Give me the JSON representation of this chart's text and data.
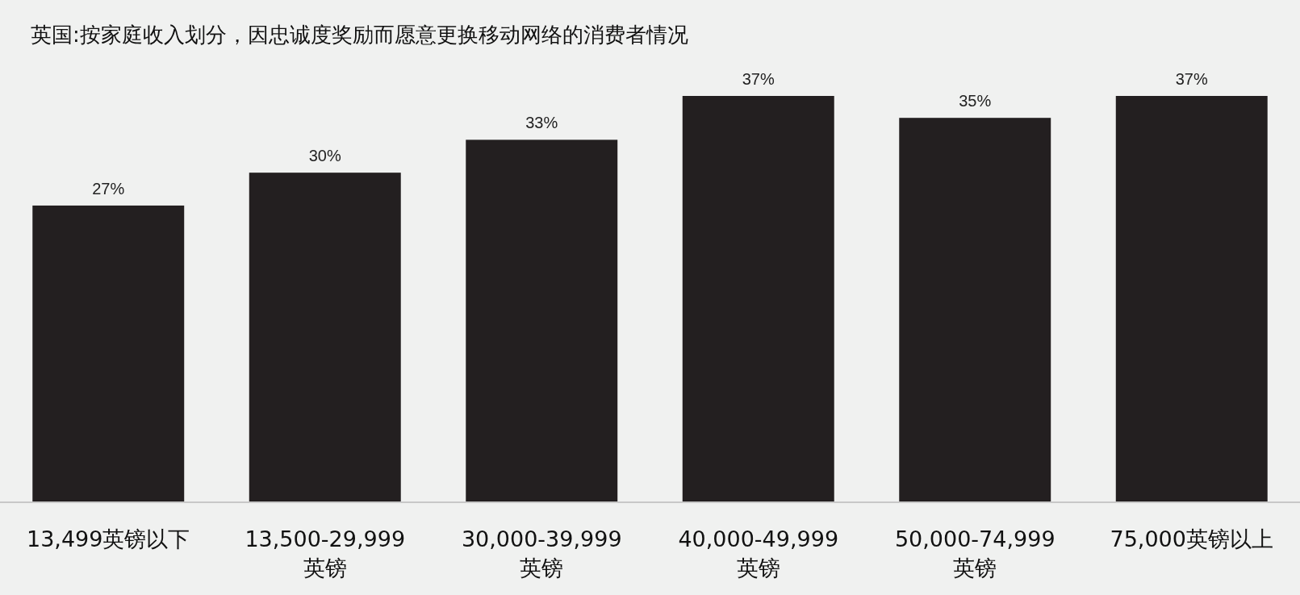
{
  "chart_data": {
    "type": "bar",
    "title": "英国:按家庭收入划分，因忠诚度奖励而愿意更换移动网络的消费者情况",
    "categories": [
      "13,499英镑以下",
      "13,500-29,999 英镑",
      "30,000-39,999 英镑",
      "40,000-49,999 英镑",
      "50,000-74,999 英镑",
      "75,000英镑以上"
    ],
    "values": [
      27,
      30,
      33,
      37,
      35,
      37
    ],
    "value_labels": [
      "27%",
      "30%",
      "33%",
      "37%",
      "35%",
      "37%"
    ],
    "color": "#231f20"
  }
}
